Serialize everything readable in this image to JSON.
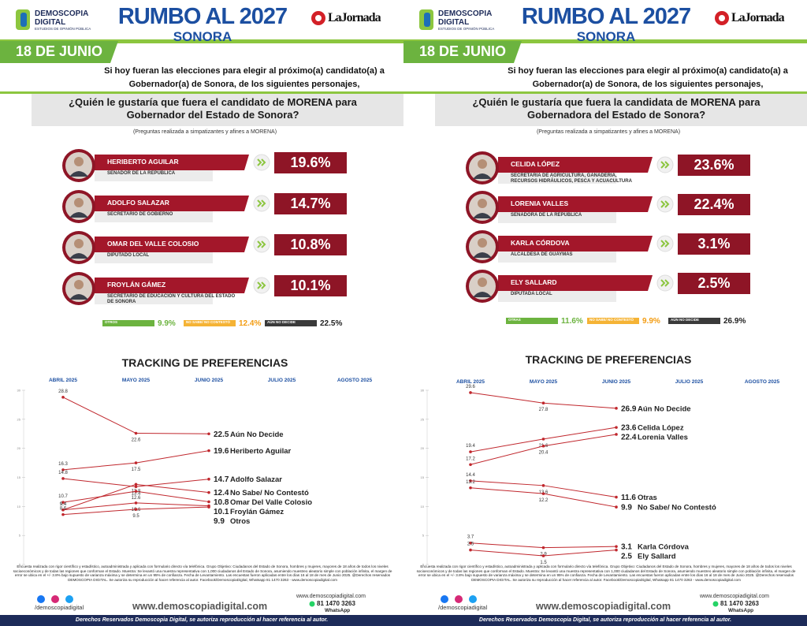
{
  "panels": [
    {
      "brand": "DEMOSCOPIA DIGITAL",
      "brand_sub": "ESTUDIOS DE OPINIÓN PÚBLICA",
      "title": "RUMBO AL 2027",
      "subtitle": "SONORA",
      "newspaper": "LaJornada",
      "date": "18 DE JUNIO",
      "intro": "Si hoy fueran las elecciones para elegir al próximo(a) candidato(a) a Gobernador(a) de Sonora, de los siguientes personajes,",
      "question": "¿Quién le gustaría que fuera el candidato de MORENA para Gobernador del Estado de Sonora?",
      "note": "(Preguntas realizada a simpatizantes y afines a MORENA)",
      "candidates": [
        {
          "name": "HERIBERTO AGUILAR",
          "role": "SENADOR DE LA REPÚBLICA",
          "value": "19.6%"
        },
        {
          "name": "ADOLFO SALAZAR",
          "role": "SECRETARIO DE GOBIERNO",
          "value": "14.7%"
        },
        {
          "name": "OMAR DEL VALLE COLOSIO",
          "role": "DIPUTADO LOCAL",
          "value": "10.8%"
        },
        {
          "name": "FROYLÁN GÁMEZ",
          "role": "SECRETARIO DE EDUCACIÓN Y CULTURA DEL ESTADO DE SONORA",
          "value": "10.1%"
        }
      ],
      "others": [
        {
          "label": "OTROS",
          "value": "9.9%"
        },
        {
          "label": "NO SABE/ NO CONTESTÓ",
          "value": "12.4%"
        },
        {
          "label": "AÚN NO DECIDE",
          "value": "22.5%"
        }
      ],
      "tracking": {
        "title": "TRACKING DE PREFERENCIAS",
        "months": [
          "ABRIL 2025",
          "MAYO 2025",
          "JUNIO 2025",
          "JULIO 2025",
          "AGOSTO 2025"
        ],
        "ylim": [
          0,
          30
        ],
        "yticks": [
          0,
          5,
          10,
          15,
          20,
          25,
          30
        ],
        "color": "#c0272d",
        "series": [
          {
            "name": "Aún No Decide",
            "values": [
              28.8,
              22.6,
              22.5,
              null,
              null
            ]
          },
          {
            "name": "Heriberto Aguilar",
            "values": [
              16.3,
              17.5,
              19.6,
              null,
              null
            ]
          },
          {
            "name": "Adolfo Salazar",
            "values": [
              14.8,
              13.4,
              14.7,
              null,
              null
            ]
          },
          {
            "name": "No Sabe/ No Contestó",
            "values": [
              9.4,
              13.8,
              12.4,
              null,
              null
            ]
          },
          {
            "name": "Omar Del Valle Colosio",
            "values": [
              10.7,
              12.6,
              10.8,
              null,
              null
            ]
          },
          {
            "name": "Froylán Gámez",
            "values": [
              9.4,
              10.6,
              10.1,
              null,
              null
            ]
          },
          {
            "name": "Otros",
            "values": [
              8.6,
              9.5,
              9.9,
              null,
              null
            ]
          }
        ]
      },
      "methodology": "Encuesta realizada con rigor científico y estadístico, autoadministrada y aplicada con formulario directo vía telefónica. Grupo Objetivo: Ciudadanos del Estado de Sonora, hombres y mujeres, mayores de 18 años de todos los niveles socioeconómicos y de todas las regiones que conforman el Estado. Muestra: Se levantó una muestra representativa con 1,000 ciudadanos del Estado de Sonora, asumiendo muestreo aleatorio simple con población infinita, el margen de error se ubica en el +/- 3.8% bajo supuesto de varianza máxima y se determina en un 95% de confianza. Fecha de Levantamiento. Las encuestas fueron aplicadas entre los días 16 al 18 de mes de Junio 2025. @Derechos reservados DEMOSCOPIA DIGITAL. Se autoriza su reproducción al hacer referencia al autor. Facebook/DemoscopiaDigital, Whatsapp 81 1470 3263 - www.demoscopiadigital.com",
      "social": "/demoscopiadigital",
      "website": "www.demoscopiadigital.com",
      "phone": "81 1470 3263",
      "whatsapp": "WhatsApp",
      "footer": "Derechos Reservados Demoscopia Digital, se autoriza reproducción al hacer referencia al autor."
    },
    {
      "brand": "DEMOSCOPIA DIGITAL",
      "brand_sub": "ESTUDIOS DE OPINIÓN PÚBLICA",
      "title": "RUMBO AL 2027",
      "subtitle": "SONORA",
      "newspaper": "LaJornada",
      "date": "18 DE JUNIO",
      "intro": "Si hoy fueran las elecciones para elegir al próximo(a) candidato(a) a Gobernador(a) de Sonora, de los siguientes personajes,",
      "question": "¿Quién le gustaría que fuera la candidata de MORENA para Gobernadora del Estado de Sonora?",
      "note": "(Preguntas realizada a simpatizantes y afines a MORENA)",
      "candidates": [
        {
          "name": "CELIDA LÓPEZ",
          "role": "SECRETARIA DE AGRICULTURA, GANADERIA, RECURSOS HIDRÁULICOS, PESCA Y ACUACULTURA",
          "value": "23.6%"
        },
        {
          "name": "LORENIA VALLES",
          "role": "SENADORA DE LA REPÚBLICA",
          "value": "22.4%"
        },
        {
          "name": "KARLA CÓRDOVA",
          "role": "ALCALDESA DE GUAYMAS",
          "value": "3.1%"
        },
        {
          "name": "ELY SALLARD",
          "role": "DIPUTADA LOCAL",
          "value": "2.5%"
        }
      ],
      "others": [
        {
          "label": "OTRAS",
          "value": "11.6%"
        },
        {
          "label": "NO SABE/ NO CONTESTÓ",
          "value": "9.9%"
        },
        {
          "label": "AÚN NO DECIDE",
          "value": "26.9%"
        }
      ],
      "tracking": {
        "title": "TRACKING DE PREFERENCIAS",
        "months": [
          "ABRIL 2025",
          "MAYO 2025",
          "JUNIO 2025",
          "JULIO 2025",
          "AGOSTO 2025"
        ],
        "ylim": [
          0,
          30
        ],
        "yticks": [
          0,
          5,
          10,
          15,
          20,
          25,
          30
        ],
        "color": "#c0272d",
        "series": [
          {
            "name": "Aún No Decide",
            "values": [
              29.6,
              27.8,
              26.9,
              null,
              null
            ]
          },
          {
            "name": "Celida López",
            "values": [
              19.4,
              21.6,
              23.6,
              null,
              null
            ]
          },
          {
            "name": "Lorenia Valles",
            "values": [
              17.2,
              20.4,
              22.4,
              null,
              null
            ]
          },
          {
            "name": "Otras",
            "values": [
              14.4,
              13.6,
              11.6,
              null,
              null
            ]
          },
          {
            "name": "No Sabe/ No Contestó",
            "values": [
              13.2,
              12.2,
              9.9,
              null,
              null
            ]
          },
          {
            "name": "Karla Córdova",
            "values": [
              3.7,
              2.9,
              3.1,
              null,
              null
            ]
          },
          {
            "name": "Ely Sallard",
            "values": [
              2.5,
              1.5,
              2.5,
              null,
              null
            ]
          }
        ]
      },
      "methodology": "Encuesta realizada con rigor científico y estadístico, autoadministrada y aplicada con formulario directo vía telefónica. Grupo Objetivo: Ciudadanos del Estado de Sonora, hombres y mujeres, mayores de 18 años de todos los niveles socioeconómicos y de todas las regiones que conforman el Estado. Muestra: Se levantó una muestra representativa con 1,000 ciudadanos del Estado de Sonora, asumiendo muestreo aleatorio simple con población infinita, el margen de error se ubica en el +/- 3.8% bajo supuesto de varianza máxima y se determina en un 95% de confianza. Fecha de Levantamiento. Las encuestas fueron aplicadas entre los días 16 al 18 de mes de Junio 2025. @Derechos reservados DEMOSCOPIA DIGITAL. Se autoriza su reproducción al hacer referencia al autor. Facebook/DemoscopiaDigital, Whatsapp 81 1470 3263 - www.demoscopiadigital.com",
      "social": "/demoscopiadigital",
      "website": "www.demoscopiadigital.com",
      "phone": "81 1470 3263",
      "whatsapp": "WhatsApp",
      "footer": "Derechos Reservados Demoscopia Digital, se autoriza reproducción al hacer referencia al autor."
    }
  ]
}
